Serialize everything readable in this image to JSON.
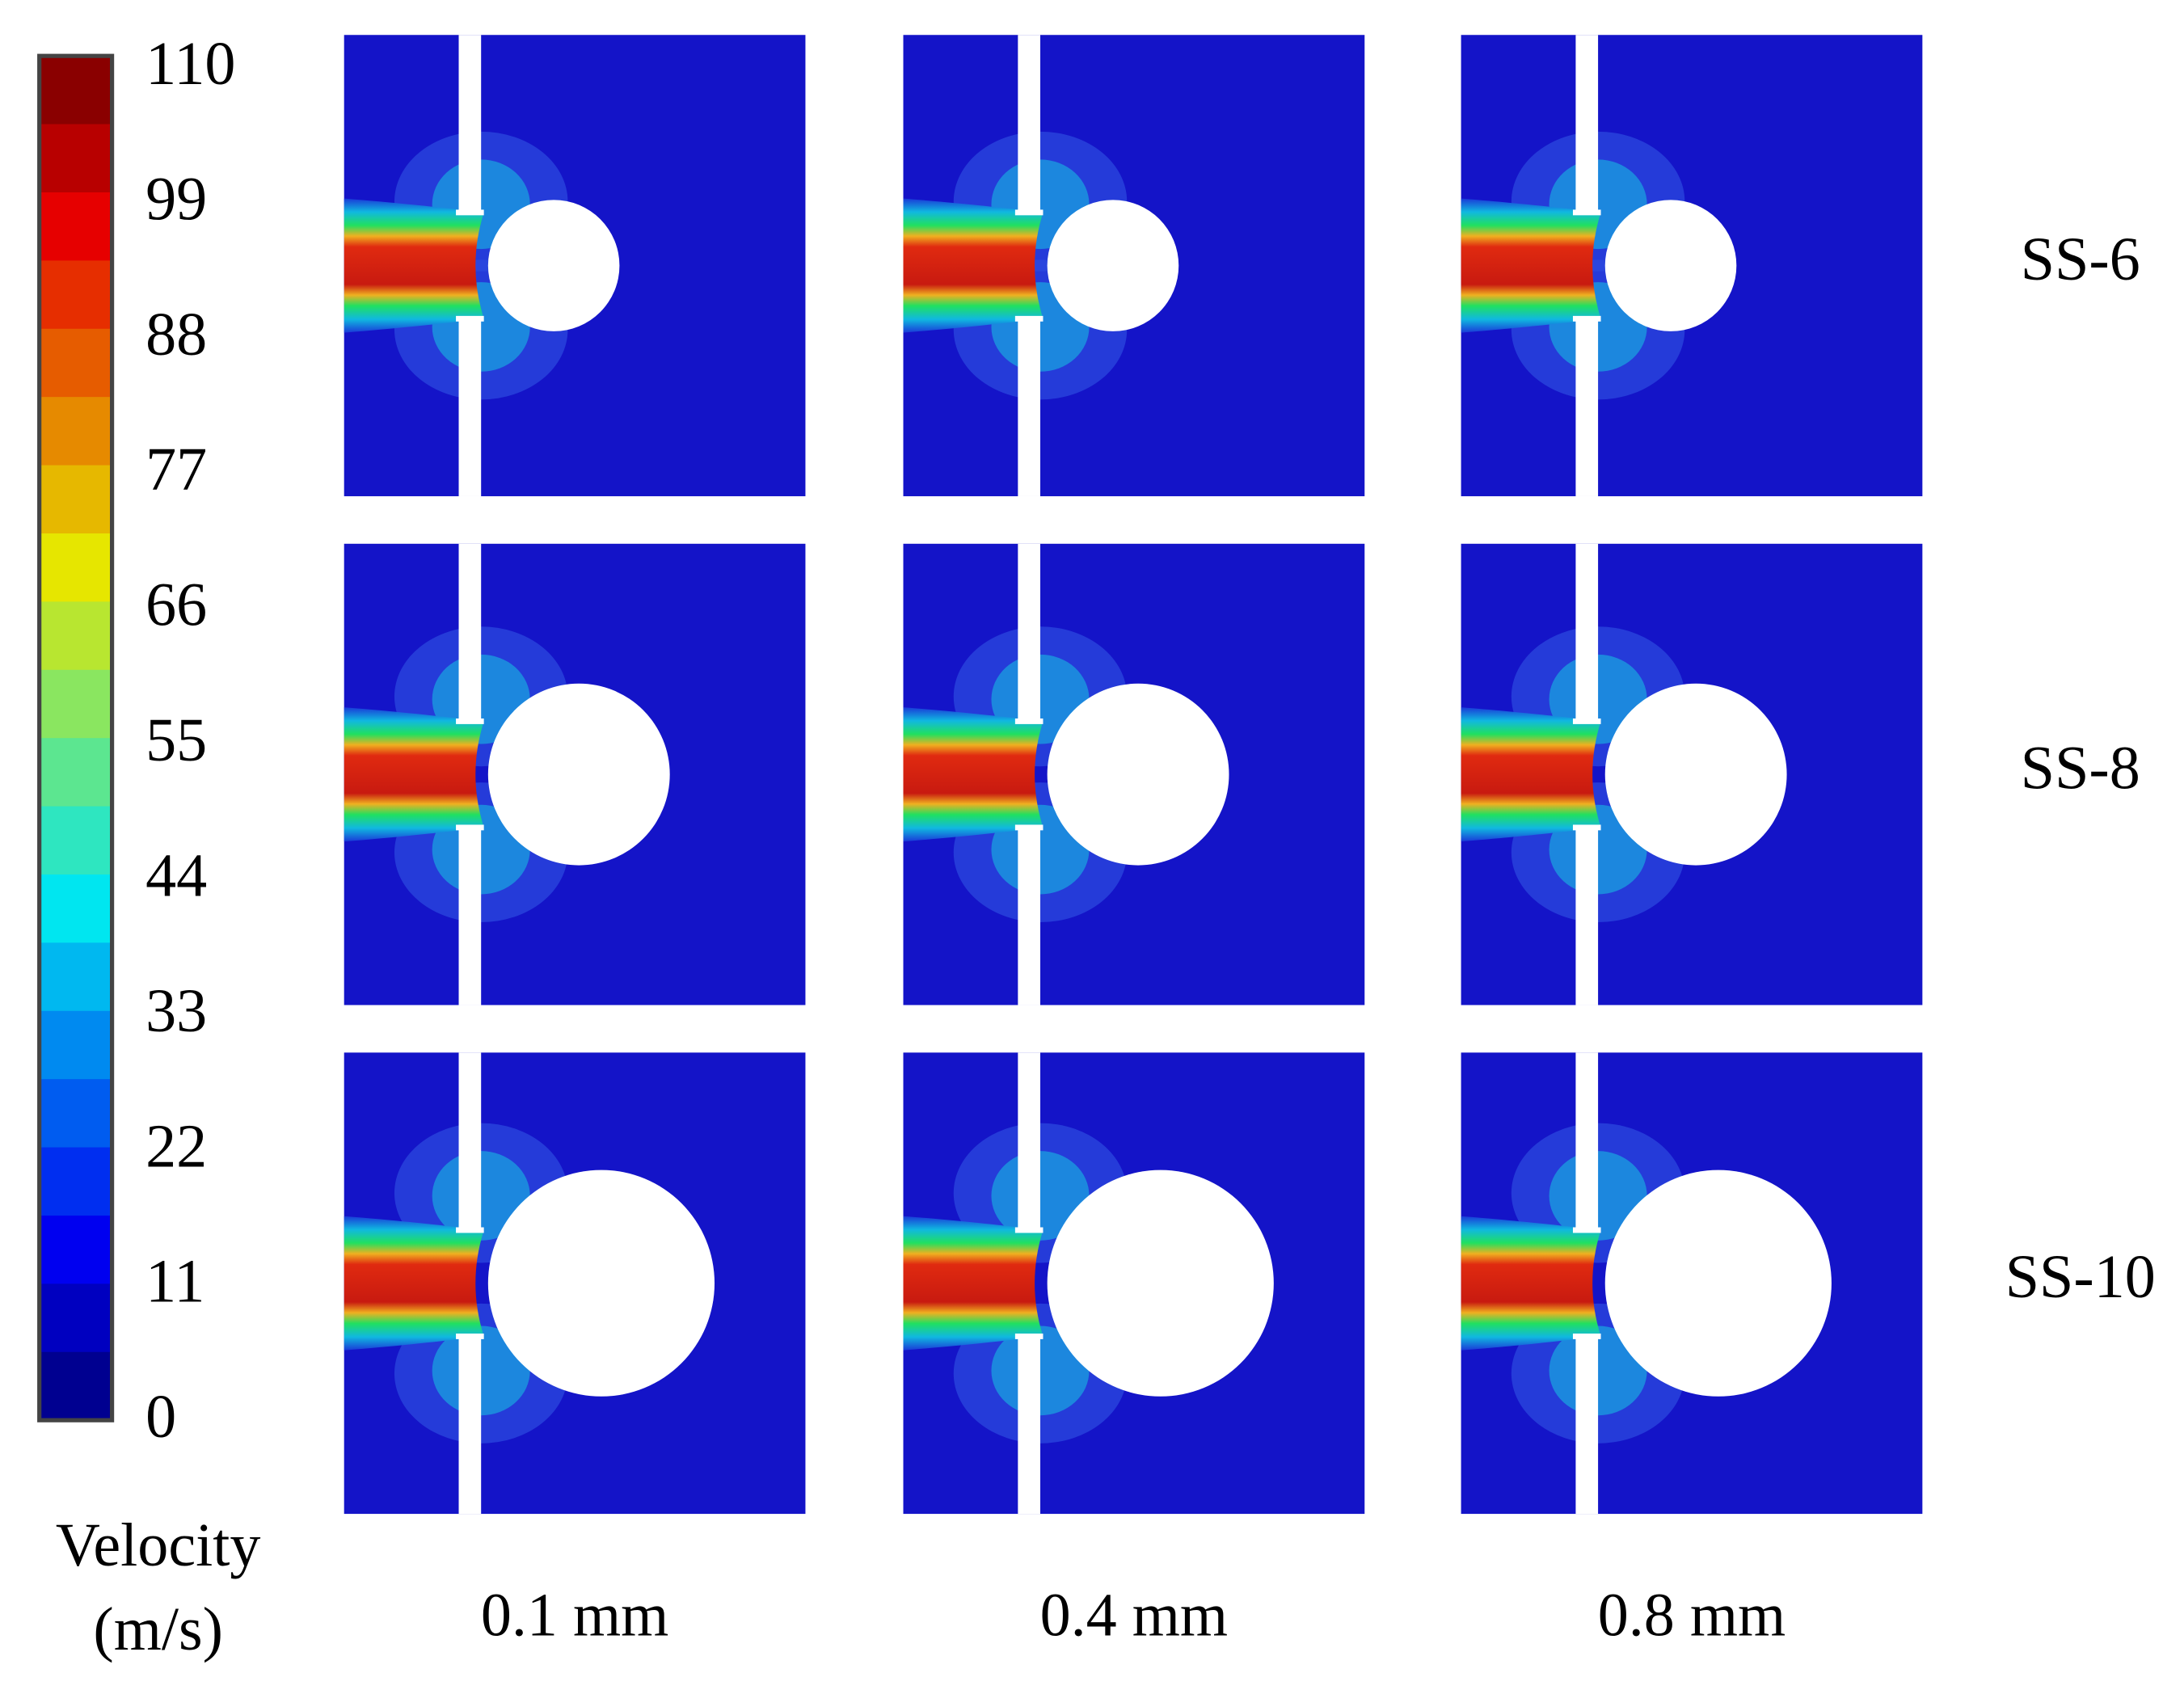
{
  "colorbar": {
    "ticks": [
      "110",
      "99",
      "88",
      "77",
      "66",
      "55",
      "44",
      "33",
      "22",
      "11",
      "0"
    ],
    "title": [
      "Velocity",
      "(m/s)"
    ]
  },
  "rows": [
    "SS-6",
    "SS-8",
    "SS-10"
  ],
  "columns": [
    "0.1 mm",
    "0.4 mm",
    "0.8 mm"
  ]
}
